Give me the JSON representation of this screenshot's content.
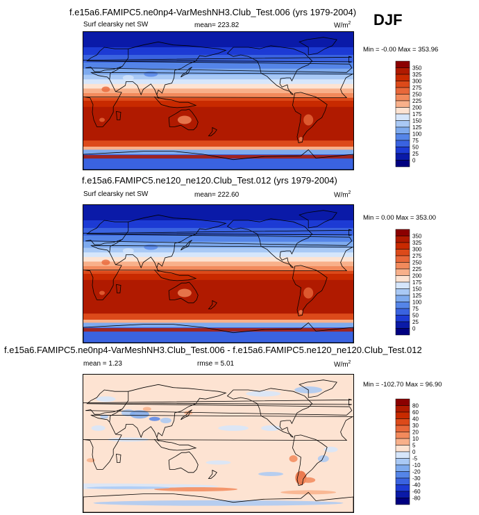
{
  "season": "DJF",
  "chart_data": [
    {
      "type": "heatmap",
      "title": "f.e15a6.FAMIPC5.ne0np4-VarMeshNH3.Club_Test.006 (yrs 1979-2004)",
      "left_label": "Surf clearsky net SW",
      "center_label": "mean= 223.82",
      "units": "W/m",
      "units_sup": "2",
      "minmax": "Min =  -0.00 Max = 353.96",
      "colorbar_levels": [
        "350",
        "325",
        "300",
        "275",
        "250",
        "225",
        "200",
        "175",
        "150",
        "125",
        "100",
        "75",
        "50",
        "25",
        "0"
      ],
      "colors": [
        "#8b0000",
        "#b01a00",
        "#c82a00",
        "#dc4a1a",
        "#e8683a",
        "#f28a5c",
        "#f8b08a",
        "#fde3d2",
        "#d6e6fb",
        "#a9c9f5",
        "#7eaaee",
        "#5585e8",
        "#3a63e0",
        "#1d3bd4",
        "#0a1aa8",
        "#000080"
      ],
      "field_mean": 223.82
    },
    {
      "type": "heatmap",
      "title": "f.e15a6.FAMIPC5.ne120_ne120.Club_Test.012 (yrs 1979-2004)",
      "left_label": "Surf clearsky net SW",
      "center_label": "mean= 222.60",
      "units": "W/m",
      "units_sup": "2",
      "minmax": "Min =   0.00 Max = 353.00",
      "colorbar_levels": [
        "350",
        "325",
        "300",
        "275",
        "250",
        "225",
        "200",
        "175",
        "150",
        "125",
        "100",
        "75",
        "50",
        "25",
        "0"
      ],
      "colors": [
        "#8b0000",
        "#b01a00",
        "#c82a00",
        "#dc4a1a",
        "#e8683a",
        "#f28a5c",
        "#f8b08a",
        "#fde3d2",
        "#d6e6fb",
        "#a9c9f5",
        "#7eaaee",
        "#5585e8",
        "#3a63e0",
        "#1d3bd4",
        "#0a1aa8",
        "#000080"
      ],
      "field_mean": 222.6
    },
    {
      "type": "heatmap",
      "title": "f.e15a6.FAMIPC5.ne0np4-VarMeshNH3.Club_Test.006 - f.e15a6.FAMIPC5.ne120_ne120.Club_Test.012",
      "left_label": "mean =   1.23",
      "center_label": "rmse =   5.01",
      "units": "W/m",
      "units_sup": "2",
      "minmax": "Min = -102.70 Max =  96.90",
      "colorbar_levels": [
        "80",
        "60",
        "40",
        "30",
        "20",
        "10",
        "5",
        "0",
        "-5",
        "-10",
        "-20",
        "-30",
        "-40",
        "-60",
        "-80"
      ],
      "colors": [
        "#8b0000",
        "#b01a00",
        "#c82a00",
        "#dc4a1a",
        "#e8683a",
        "#f28a5c",
        "#f8b08a",
        "#fde3d2",
        "#d6e6fb",
        "#a9c9f5",
        "#7eaaee",
        "#5585e8",
        "#3a63e0",
        "#1d3bd4",
        "#0a1aa8",
        "#000080"
      ],
      "field_mean": 1.23
    }
  ]
}
